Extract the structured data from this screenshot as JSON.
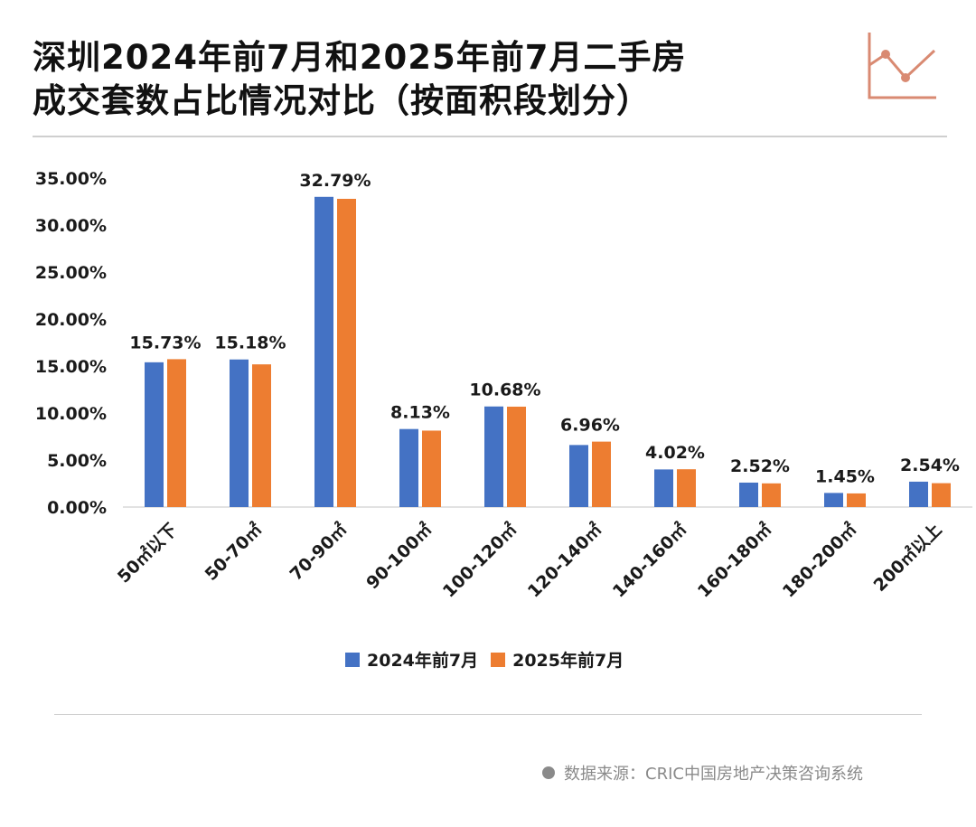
{
  "title_line1": "深圳2024年前7月和2025年前7月二手房",
  "title_line2": "成交套数占比情况对比（按面积段划分）",
  "source": "数据来源：CRIC中国房地产决策咨询系统",
  "colors": {
    "series_2024": "#4472c4",
    "series_2025": "#ed7d31",
    "logo": "#d98a72",
    "axis": "#d9d9d9"
  },
  "chart_data": {
    "type": "bar",
    "categories": [
      "50㎡以下",
      "50-70㎡",
      "70-90㎡",
      "90-100㎡",
      "100-120㎡",
      "120-140㎡",
      "140-160㎡",
      "160-180㎡",
      "180-200㎡",
      "200㎡以上"
    ],
    "series": [
      {
        "name": "2024年前7月",
        "values": [
          15.4,
          15.7,
          33.0,
          8.3,
          10.7,
          6.6,
          4.0,
          2.6,
          1.5,
          2.7
        ]
      },
      {
        "name": "2025年前7月",
        "values": [
          15.73,
          15.18,
          32.79,
          8.13,
          10.68,
          6.96,
          4.02,
          2.52,
          1.45,
          2.54
        ]
      }
    ],
    "data_labels": [
      "15.73%",
      "15.18%",
      "32.79%",
      "8.13%",
      "10.68%",
      "6.96%",
      "4.02%",
      "2.52%",
      "1.45%",
      "2.54%"
    ],
    "yticks": [
      "0.00%",
      "5.00%",
      "10.00%",
      "15.00%",
      "20.00%",
      "25.00%",
      "30.00%",
      "35.00%"
    ],
    "ylim": [
      0,
      35
    ],
    "grid": false,
    "legend_position": "bottom"
  }
}
